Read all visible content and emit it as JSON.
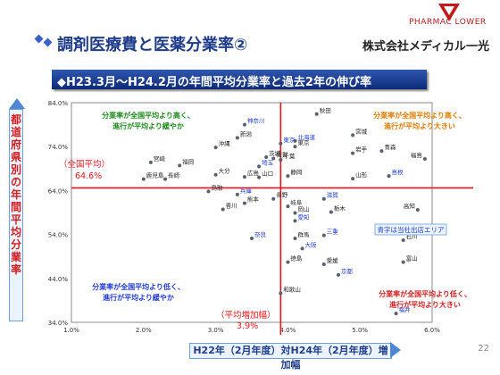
{
  "header": {
    "logo_text": "PHARMAC LOWER",
    "title": "調剤医療費と医薬分業率②",
    "company": "株式会社メディカル一光",
    "subtitle": "◆H23.3月～H24.2月の年間平均分業率と過去2年の伸び率"
  },
  "page_number": "22",
  "colors": {
    "title_bar": "#1e3f96",
    "avg_line": "#e8161c",
    "own_area": "#1f3bd6",
    "other": "#222222"
  },
  "chart_data": {
    "type": "scatter",
    "xlabel": "H22年（2月年度）対H24年（2月年度）増加幅",
    "ylabel": "都道府県別の年間平均分業率",
    "xlim": [
      1.0,
      6.0
    ],
    "ylim": [
      34.0,
      84.0
    ],
    "x_ticks": [
      "1.0%",
      "2.0%",
      "3.0%",
      "4.0%",
      "5.0%",
      "6.0%"
    ],
    "y_ticks": [
      "84.0%",
      "74.0%",
      "64.0%",
      "54.0%",
      "44.0%",
      "34.0%"
    ],
    "grid": false,
    "avg_y": 64.6,
    "avg_y_label": "（全国平均）",
    "avg_y_value": "64.6%",
    "avg_x": 3.9,
    "avg_x_label": "（平均増加幅）",
    "avg_x_value": "3.9%",
    "legend_note": "青字は当社出店エリア",
    "quadrants": {
      "top_left": [
        "分業率が全国平均より高く、",
        "進行が平均より緩やか"
      ],
      "top_right": [
        "分業率が全国平均より高く、",
        "進行が平均より大きい"
      ],
      "bottom_left": [
        "分業率が全国平均より低く、",
        "進行が平均より緩やか"
      ],
      "bottom_right": [
        "分業率が全国平均より低く、",
        "進行が平均より大きい"
      ]
    },
    "points": [
      {
        "name": "秋田",
        "x": 4.4,
        "y": 81.4,
        "own": false
      },
      {
        "name": "神奈川",
        "x": 3.4,
        "y": 79.0,
        "own": true
      },
      {
        "name": "宮城",
        "x": 4.9,
        "y": 76.6,
        "own": false
      },
      {
        "name": "新潟",
        "x": 3.3,
        "y": 76.0,
        "own": false
      },
      {
        "name": "北海道",
        "x": 4.1,
        "y": 75.3,
        "own": true
      },
      {
        "name": "東京",
        "x": 3.9,
        "y": 74.7,
        "own": true
      },
      {
        "name": "東京",
        "x": 4.1,
        "y": 74.0,
        "own": false
      },
      {
        "name": "沖縄",
        "x": 3.0,
        "y": 73.8,
        "own": false
      },
      {
        "name": "青森",
        "x": 5.3,
        "y": 73.0,
        "own": false
      },
      {
        "name": "岩手",
        "x": 4.9,
        "y": 72.5,
        "own": false
      },
      {
        "name": "茨城",
        "x": 3.7,
        "y": 71.6,
        "own": false
      },
      {
        "name": "佐賀",
        "x": 3.8,
        "y": 71.3,
        "own": false
      },
      {
        "name": "福島",
        "x": 5.9,
        "y": 71.2,
        "own": false
      },
      {
        "name": "千葉",
        "x": 3.9,
        "y": 71.0,
        "own": false
      },
      {
        "name": "宮崎",
        "x": 2.1,
        "y": 70.4,
        "own": false
      },
      {
        "name": "福岡",
        "x": 2.5,
        "y": 69.7,
        "own": false
      },
      {
        "name": "埼玉",
        "x": 3.6,
        "y": 69.5,
        "own": true
      },
      {
        "name": "大分",
        "x": 3.0,
        "y": 67.6,
        "own": false
      },
      {
        "name": "広島",
        "x": 3.4,
        "y": 67.1,
        "own": false
      },
      {
        "name": "山口",
        "x": 3.6,
        "y": 67.0,
        "own": false
      },
      {
        "name": "静岡",
        "x": 4.0,
        "y": 67.3,
        "own": false
      },
      {
        "name": "島根",
        "x": 5.4,
        "y": 67.3,
        "own": true
      },
      {
        "name": "鹿児島",
        "x": 2.0,
        "y": 66.6,
        "own": false
      },
      {
        "name": "長崎",
        "x": 2.3,
        "y": 66.6,
        "own": false
      },
      {
        "name": "山形",
        "x": 4.9,
        "y": 66.7,
        "own": false
      },
      {
        "name": "鳥取",
        "x": 2.9,
        "y": 63.8,
        "own": false
      },
      {
        "name": "兵庫",
        "x": 3.3,
        "y": 63.1,
        "own": true
      },
      {
        "name": "長野",
        "x": 3.8,
        "y": 62.1,
        "own": false
      },
      {
        "name": "滋賀",
        "x": 4.5,
        "y": 62.1,
        "own": true
      },
      {
        "name": "熊本",
        "x": 3.4,
        "y": 61.1,
        "own": false
      },
      {
        "name": "岐阜",
        "x": 4.0,
        "y": 60.4,
        "own": false
      },
      {
        "name": "香川",
        "x": 3.1,
        "y": 59.7,
        "own": false
      },
      {
        "name": "高知",
        "x": 5.8,
        "y": 59.6,
        "own": false
      },
      {
        "name": "岡山",
        "x": 4.1,
        "y": 58.9,
        "own": false
      },
      {
        "name": "栃木",
        "x": 4.6,
        "y": 59.1,
        "own": false
      },
      {
        "name": "愛知",
        "x": 4.1,
        "y": 57.1,
        "own": true
      },
      {
        "name": "三重",
        "x": 4.5,
        "y": 53.8,
        "own": true
      },
      {
        "name": "奈良",
        "x": 3.5,
        "y": 53.1,
        "own": true
      },
      {
        "name": "群馬",
        "x": 4.1,
        "y": 53.1,
        "own": false
      },
      {
        "name": "石川",
        "x": 5.6,
        "y": 52.7,
        "own": false
      },
      {
        "name": "大阪",
        "x": 4.2,
        "y": 50.8,
        "own": true
      },
      {
        "name": "徳島",
        "x": 4.0,
        "y": 47.7,
        "own": false
      },
      {
        "name": "愛媛",
        "x": 4.5,
        "y": 47.2,
        "own": false
      },
      {
        "name": "富山",
        "x": 5.6,
        "y": 47.7,
        "own": false
      },
      {
        "name": "京都",
        "x": 4.7,
        "y": 44.8,
        "own": true
      },
      {
        "name": "和歌山",
        "x": 3.9,
        "y": 40.6,
        "own": false
      },
      {
        "name": "福井",
        "x": 5.5,
        "y": 36.0,
        "own": true
      }
    ]
  }
}
